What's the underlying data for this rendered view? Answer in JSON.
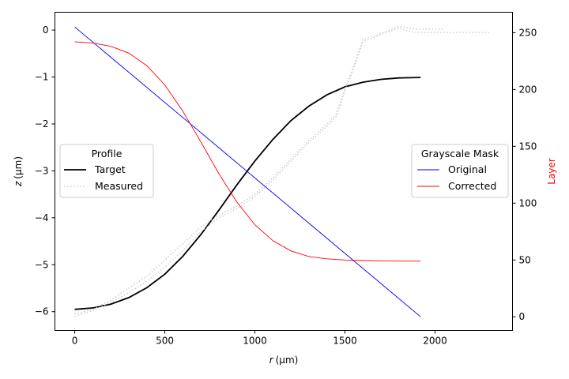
{
  "chart_data": {
    "type": "line",
    "xlabel": "r (μm)",
    "xlabel_var": "r",
    "xlabel_unit": "(μm)",
    "ylabel": "z (μm)",
    "ylabel_var": "z",
    "ylabel_unit": "(μm)",
    "y2label": "Layer",
    "y2label_color": "#ff0000",
    "xlim": [
      -110,
      2430
    ],
    "ylim": [
      -6.4,
      0.38
    ],
    "y2lim": [
      -12,
      268
    ],
    "x_ticks": [
      0,
      500,
      1000,
      1500,
      2000
    ],
    "y_ticks": [
      0,
      -1,
      -2,
      -3,
      -4,
      -5,
      -6
    ],
    "y2_ticks": [
      0,
      50,
      100,
      150,
      200,
      250
    ],
    "grid": false,
    "legends": [
      {
        "title": "Profile",
        "placement": "center-left",
        "entries": [
          {
            "label": "Target",
            "series": "Target"
          },
          {
            "label": "Measured",
            "series": "Measured"
          }
        ]
      },
      {
        "title": "Grayscale Mask",
        "placement": "center-right",
        "entries": [
          {
            "label": "Original",
            "series": "Original"
          },
          {
            "label": "Corrected",
            "series": "Corrected"
          }
        ]
      }
    ],
    "series": [
      {
        "name": "Target",
        "axis": "left",
        "color": "#000000",
        "style": "solid",
        "x": [
          0,
          100,
          200,
          300,
          400,
          500,
          600,
          700,
          800,
          900,
          1000,
          1100,
          1200,
          1300,
          1400,
          1500,
          1600,
          1700,
          1800,
          1920
        ],
        "y": [
          -5.95,
          -5.92,
          -5.84,
          -5.7,
          -5.49,
          -5.2,
          -4.82,
          -4.36,
          -3.84,
          -3.3,
          -2.79,
          -2.33,
          -1.93,
          -1.62,
          -1.38,
          -1.21,
          -1.11,
          -1.05,
          -1.02,
          -1.01
        ]
      },
      {
        "name": "Measured",
        "axis": "left",
        "color": "#c8c8c8",
        "style": "dotted",
        "x": [
          0,
          100,
          200,
          300,
          400,
          500,
          600,
          700,
          800,
          900,
          1000,
          1100,
          1200,
          1300,
          1400,
          1450,
          1500,
          1550,
          1600,
          1700,
          1800,
          1850,
          1900,
          2000,
          2100,
          2200,
          2300
        ],
        "y": [
          -6.1,
          -5.98,
          -5.8,
          -5.6,
          -5.35,
          -5.05,
          -4.7,
          -4.3,
          -4.0,
          -3.8,
          -3.55,
          -3.2,
          -2.8,
          -2.4,
          -2.05,
          -1.85,
          -1.3,
          -0.8,
          -0.25,
          -0.1,
          0.05,
          -0.02,
          -0.05,
          -0.05,
          -0.05,
          -0.05,
          -0.05
        ]
      },
      {
        "name": "Measured",
        "axis": "left",
        "color": "#c8c8c8",
        "style": "dotted",
        "x": [
          0,
          100,
          200,
          300,
          400,
          500,
          600,
          700,
          800,
          900,
          1000,
          1100,
          1200,
          1300,
          1400,
          1450,
          1500,
          1550,
          1600,
          1700,
          1800,
          1900,
          2000,
          2050
        ],
        "y": [
          -6.05,
          -5.95,
          -5.75,
          -5.5,
          -5.25,
          -4.9,
          -4.55,
          -4.2,
          -3.95,
          -3.75,
          -3.5,
          -3.15,
          -2.75,
          -2.35,
          -2.0,
          -1.8,
          -1.25,
          -0.75,
          -0.2,
          -0.07,
          0.08,
          0.02,
          0.02,
          0.02
        ]
      },
      {
        "name": "Original",
        "axis": "right",
        "color": "#0000ff",
        "style": "solid",
        "x": [
          0,
          1920
        ],
        "y": [
          255,
          0
        ]
      },
      {
        "name": "Corrected",
        "axis": "right",
        "color": "#ff0000",
        "style": "solid",
        "x": [
          0,
          100,
          200,
          300,
          400,
          500,
          600,
          700,
          800,
          900,
          1000,
          1100,
          1200,
          1300,
          1400,
          1500,
          1600,
          1700,
          1800,
          1920
        ],
        "y": [
          242,
          241,
          238,
          232,
          221,
          204,
          181,
          154,
          126,
          101,
          81,
          67,
          58,
          53,
          51,
          50,
          49.5,
          49.2,
          49,
          49
        ]
      }
    ]
  }
}
